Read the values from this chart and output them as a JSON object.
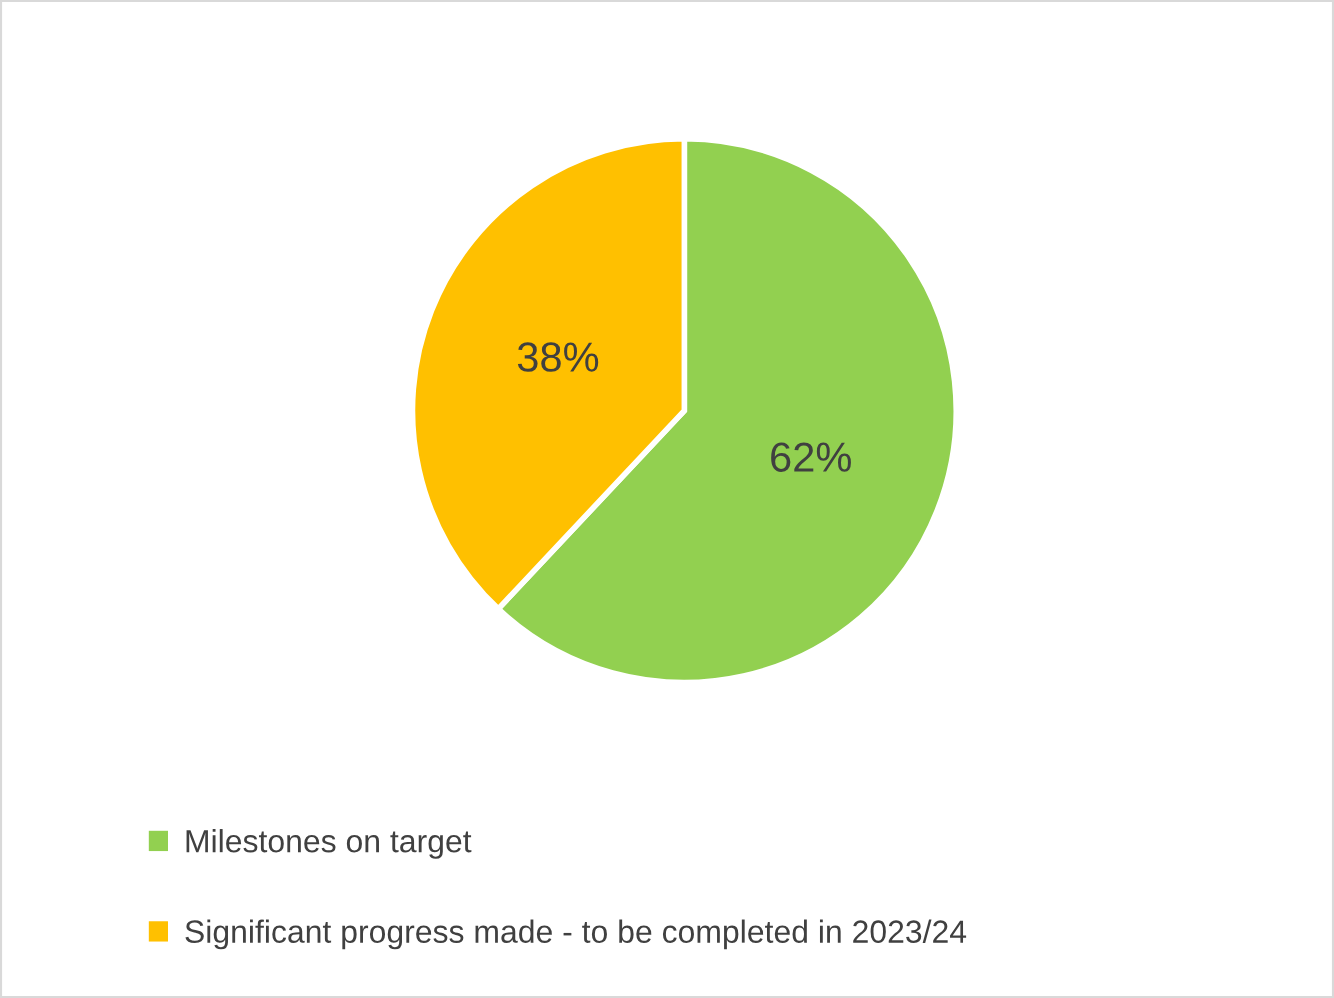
{
  "chart_data": {
    "type": "pie",
    "categories": [
      "Milestones on target",
      "Significant progress made - to be completed in 2023/24"
    ],
    "values": [
      62,
      38
    ],
    "colors": [
      "#92d050",
      "#ffc000"
    ],
    "value_labels": [
      "62%",
      "38%"
    ],
    "legend": "bottom"
  }
}
